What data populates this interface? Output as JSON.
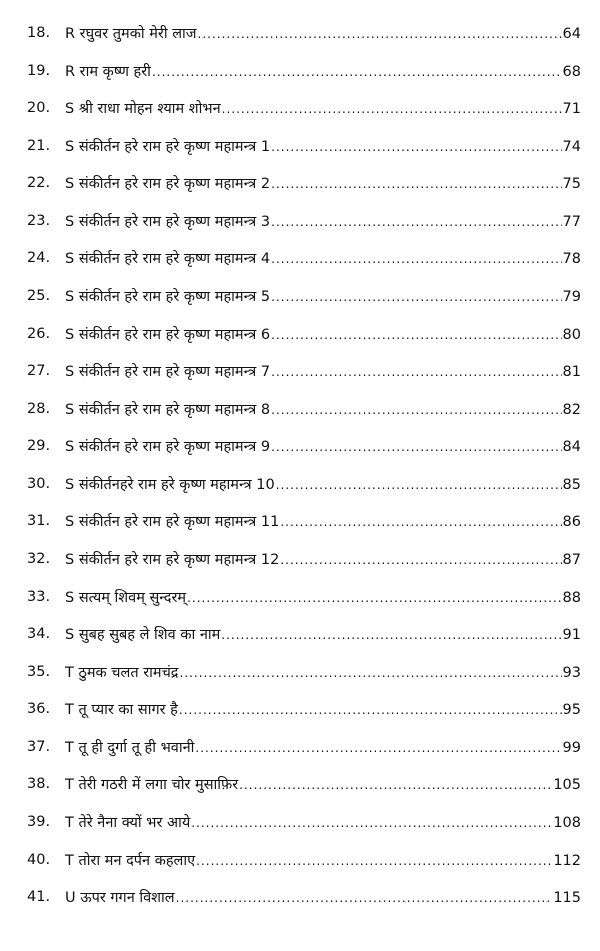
{
  "entries": [
    {
      "num": "18.",
      "title": "R रघुवर तुमको मेरी लाज",
      "page": "64"
    },
    {
      "num": "19.",
      "title": "R राम कृष्ण हरी",
      "page": "68"
    },
    {
      "num": "20.",
      "title": "S श्री राधा मोहन श्याम शोभन",
      "page": "71"
    },
    {
      "num": "21.",
      "title": "S संकीर्तन हरे राम हरे कृष्ण महामन्त्र 1",
      "page": "74"
    },
    {
      "num": "22.",
      "title": "S संकीर्तन हरे राम हरे कृष्ण महामन्त्र 2",
      "page": "75"
    },
    {
      "num": "23.",
      "title": "S संकीर्तन हरे राम हरे कृष्ण महामन्त्र 3",
      "page": "77"
    },
    {
      "num": "24.",
      "title": "S संकीर्तन हरे राम हरे कृष्ण महामन्त्र 4",
      "page": "78"
    },
    {
      "num": "25.",
      "title": "S संकीर्तन हरे राम हरे कृष्ण महामन्त्र 5",
      "page": "79"
    },
    {
      "num": "26.",
      "title": "S संकीर्तन हरे राम हरे कृष्ण महामन्त्र 6",
      "page": "80"
    },
    {
      "num": "27.",
      "title": "S संकीर्तन हरे राम हरे कृष्ण महामन्त्र 7",
      "page": "81"
    },
    {
      "num": "28.",
      "title": "S संकीर्तन हरे राम हरे कृष्ण महामन्त्र 8",
      "page": "82"
    },
    {
      "num": "29.",
      "title": "S संकीर्तन हरे राम हरे कृष्ण महामन्त्र 9",
      "page": "84"
    },
    {
      "num": "30.",
      "title": "S संकीर्तनहरे राम हरे कृष्ण महामन्त्र 10",
      "page": "85"
    },
    {
      "num": "31.",
      "title": "S संकीर्तन हरे राम हरे कृष्ण महामन्त्र 11",
      "page": "86"
    },
    {
      "num": "32.",
      "title": "S संकीर्तन हरे राम हरे कृष्ण महामन्त्र 12",
      "page": "87"
    },
    {
      "num": "33.",
      "title": "S सत्यम् शिवम् सुन्दरम्",
      "page": "88"
    },
    {
      "num": "34.",
      "title": "S सुबह सुबह ले शिव का नाम",
      "page": "91"
    },
    {
      "num": "35.",
      "title": "T ठुमक चलत रामचंद्र",
      "page": "93"
    },
    {
      "num": "36.",
      "title": "T तू प्यार का सागर है",
      "page": "95"
    },
    {
      "num": "37.",
      "title": "T तू ही दुर्गा तू ही भवानी",
      "page": "99"
    },
    {
      "num": "38.",
      "title": "T तेरी गठरी में लगा चोर मुसाफ़िर",
      "page": "105"
    },
    {
      "num": "39.",
      "title": "T तेरे नैना क्यों भर आये",
      "page": "108"
    },
    {
      "num": "40.",
      "title": "T तोरा मन दर्पन कहलाए",
      "page": "112"
    },
    {
      "num": "41.",
      "title": "U ऊपर गगन विशाल",
      "page": "115"
    }
  ]
}
